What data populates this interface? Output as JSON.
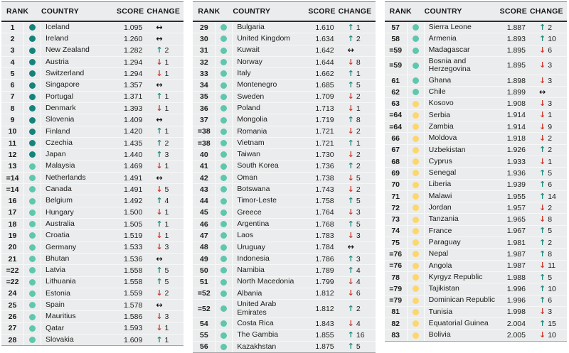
{
  "table": {
    "headers": {
      "rank": "RANK",
      "country": "COUNTRY",
      "score": "SCORE",
      "change": "CHANGE"
    },
    "change_glyphs": {
      "up": "↑",
      "down": "↓",
      "same": "↔"
    },
    "colors": {
      "tier_very_high": "#15837b",
      "tier_high": "#5ec7ad",
      "tier_medium": "#fbd76c",
      "change_up": "#1e8a7c",
      "change_down": "#cf382d",
      "change_same": "#111111",
      "block_background": "#ebeced"
    },
    "columns": [
      {
        "rows": [
          {
            "rank": "1",
            "tier": "vh",
            "country": "Iceland",
            "score": "1.095",
            "dir": "same",
            "change": ""
          },
          {
            "rank": "2",
            "tier": "vh",
            "country": "Ireland",
            "score": "1.260",
            "dir": "same",
            "change": ""
          },
          {
            "rank": "3",
            "tier": "vh",
            "country": "New Zealand",
            "score": "1.282",
            "dir": "up",
            "change": "2"
          },
          {
            "rank": "4",
            "tier": "vh",
            "country": "Austria",
            "score": "1.294",
            "dir": "down",
            "change": "1"
          },
          {
            "rank": "5",
            "tier": "vh",
            "country": "Switzerland",
            "score": "1.294",
            "dir": "down",
            "change": "1"
          },
          {
            "rank": "6",
            "tier": "vh",
            "country": "Singapore",
            "score": "1.357",
            "dir": "same",
            "change": ""
          },
          {
            "rank": "7",
            "tier": "vh",
            "country": "Portugal",
            "score": "1.371",
            "dir": "up",
            "change": "1"
          },
          {
            "rank": "8",
            "tier": "vh",
            "country": "Denmark",
            "score": "1.393",
            "dir": "down",
            "change": "1"
          },
          {
            "rank": "9",
            "tier": "vh",
            "country": "Slovenia",
            "score": "1.409",
            "dir": "same",
            "change": ""
          },
          {
            "rank": "10",
            "tier": "vh",
            "country": "Finland",
            "score": "1.420",
            "dir": "up",
            "change": "1"
          },
          {
            "rank": "11",
            "tier": "vh",
            "country": "Czechia",
            "score": "1.435",
            "dir": "up",
            "change": "2"
          },
          {
            "rank": "12",
            "tier": "vh",
            "country": "Japan",
            "score": "1.440",
            "dir": "up",
            "change": "3"
          },
          {
            "rank": "13",
            "tier": "h",
            "country": "Malaysia",
            "score": "1.469",
            "dir": "down",
            "change": "1"
          },
          {
            "rank": "=14",
            "tier": "h",
            "country": "Netherlands",
            "score": "1.491",
            "dir": "same",
            "change": ""
          },
          {
            "rank": "=14",
            "tier": "h",
            "country": "Canada",
            "score": "1.491",
            "dir": "down",
            "change": "5"
          },
          {
            "rank": "16",
            "tier": "h",
            "country": "Belgium",
            "score": "1.492",
            "dir": "up",
            "change": "4"
          },
          {
            "rank": "17",
            "tier": "h",
            "country": "Hungary",
            "score": "1.500",
            "dir": "down",
            "change": "1"
          },
          {
            "rank": "18",
            "tier": "h",
            "country": "Australia",
            "score": "1.505",
            "dir": "up",
            "change": "1"
          },
          {
            "rank": "19",
            "tier": "h",
            "country": "Croatia",
            "score": "1.519",
            "dir": "down",
            "change": "1"
          },
          {
            "rank": "20",
            "tier": "h",
            "country": "Germany",
            "score": "1.533",
            "dir": "down",
            "change": "3"
          },
          {
            "rank": "21",
            "tier": "h",
            "country": "Bhutan",
            "score": "1.536",
            "dir": "same",
            "change": ""
          },
          {
            "rank": "=22",
            "tier": "h",
            "country": "Latvia",
            "score": "1.558",
            "dir": "up",
            "change": "5"
          },
          {
            "rank": "=22",
            "tier": "h",
            "country": "Lithuania",
            "score": "1.558",
            "dir": "up",
            "change": "5"
          },
          {
            "rank": "24",
            "tier": "h",
            "country": "Estonia",
            "score": "1.559",
            "dir": "down",
            "change": "2"
          },
          {
            "rank": "25",
            "tier": "h",
            "country": "Spain",
            "score": "1.578",
            "dir": "same",
            "change": ""
          },
          {
            "rank": "26",
            "tier": "h",
            "country": "Mauritius",
            "score": "1.586",
            "dir": "down",
            "change": "3"
          },
          {
            "rank": "27",
            "tier": "h",
            "country": "Qatar",
            "score": "1.593",
            "dir": "down",
            "change": "1"
          },
          {
            "rank": "28",
            "tier": "h",
            "country": "Slovakia",
            "score": "1.609",
            "dir": "up",
            "change": "1"
          }
        ]
      },
      {
        "rows": [
          {
            "rank": "29",
            "tier": "h",
            "country": "Bulgaria",
            "score": "1.610",
            "dir": "up",
            "change": "1"
          },
          {
            "rank": "30",
            "tier": "h",
            "country": "United Kingdom",
            "score": "1.634",
            "dir": "up",
            "change": "2"
          },
          {
            "rank": "31",
            "tier": "h",
            "country": "Kuwait",
            "score": "1.642",
            "dir": "same",
            "change": ""
          },
          {
            "rank": "32",
            "tier": "h",
            "country": "Norway",
            "score": "1.644",
            "dir": "down",
            "change": "8"
          },
          {
            "rank": "33",
            "tier": "h",
            "country": "Italy",
            "score": "1.662",
            "dir": "up",
            "change": "1"
          },
          {
            "rank": "34",
            "tier": "h",
            "country": "Montenegro",
            "score": "1.685",
            "dir": "up",
            "change": "5"
          },
          {
            "rank": "35",
            "tier": "h",
            "country": "Sweden",
            "score": "1.709",
            "dir": "down",
            "change": "2"
          },
          {
            "rank": "36",
            "tier": "h",
            "country": "Poland",
            "score": "1.713",
            "dir": "down",
            "change": "1"
          },
          {
            "rank": "37",
            "tier": "h",
            "country": "Mongolia",
            "score": "1.719",
            "dir": "up",
            "change": "8"
          },
          {
            "rank": "=38",
            "tier": "h",
            "country": "Romania",
            "score": "1.721",
            "dir": "down",
            "change": "2"
          },
          {
            "rank": "=38",
            "tier": "h",
            "country": "Vietnam",
            "score": "1.721",
            "dir": "up",
            "change": "1"
          },
          {
            "rank": "40",
            "tier": "h",
            "country": "Taiwan",
            "score": "1.730",
            "dir": "down",
            "change": "2"
          },
          {
            "rank": "41",
            "tier": "h",
            "country": "South Korea",
            "score": "1.736",
            "dir": "up",
            "change": "2"
          },
          {
            "rank": "42",
            "tier": "h",
            "country": "Oman",
            "score": "1.738",
            "dir": "down",
            "change": "5"
          },
          {
            "rank": "43",
            "tier": "h",
            "country": "Botswana",
            "score": "1.743",
            "dir": "down",
            "change": "2"
          },
          {
            "rank": "44",
            "tier": "h",
            "country": "Timor-Leste",
            "score": "1.758",
            "dir": "up",
            "change": "5"
          },
          {
            "rank": "45",
            "tier": "h",
            "country": "Greece",
            "score": "1.764",
            "dir": "down",
            "change": "3"
          },
          {
            "rank": "46",
            "tier": "h",
            "country": "Argentina",
            "score": "1.768",
            "dir": "up",
            "change": "5"
          },
          {
            "rank": "47",
            "tier": "h",
            "country": "Laos",
            "score": "1.783",
            "dir": "down",
            "change": "3"
          },
          {
            "rank": "48",
            "tier": "h",
            "country": "Uruguay",
            "score": "1.784",
            "dir": "same",
            "change": ""
          },
          {
            "rank": "49",
            "tier": "h",
            "country": "Indonesia",
            "score": "1.786",
            "dir": "up",
            "change": "3"
          },
          {
            "rank": "50",
            "tier": "h",
            "country": "Namibia",
            "score": "1.789",
            "dir": "up",
            "change": "4"
          },
          {
            "rank": "51",
            "tier": "h",
            "country": "North Macedonia",
            "score": "1.799",
            "dir": "down",
            "change": "4"
          },
          {
            "rank": "=52",
            "tier": "h",
            "country": "Albania",
            "score": "1.812",
            "dir": "down",
            "change": "6"
          },
          {
            "rank": "=52",
            "tier": "h",
            "country": "United Arab Emirates",
            "score": "1.812",
            "dir": "up",
            "change": "2"
          },
          {
            "rank": "54",
            "tier": "h",
            "country": "Costa Rica",
            "score": "1.843",
            "dir": "down",
            "change": "4"
          },
          {
            "rank": "55",
            "tier": "h",
            "country": "The Gambia",
            "score": "1.855",
            "dir": "up",
            "change": "16"
          },
          {
            "rank": "56",
            "tier": "h",
            "country": "Kazakhstan",
            "score": "1.875",
            "dir": "up",
            "change": "5"
          }
        ]
      },
      {
        "rows": [
          {
            "rank": "57",
            "tier": "h",
            "country": "Sierra Leone",
            "score": "1.887",
            "dir": "up",
            "change": "2"
          },
          {
            "rank": "58",
            "tier": "h",
            "country": "Armenia",
            "score": "1.893",
            "dir": "up",
            "change": "10"
          },
          {
            "rank": "=59",
            "tier": "h",
            "country": "Madagascar",
            "score": "1.895",
            "dir": "down",
            "change": "6"
          },
          {
            "rank": "=59",
            "tier": "h",
            "country": "Bosnia and\nHerzegovina",
            "score": "1.895",
            "dir": "down",
            "change": "3"
          },
          {
            "rank": "61",
            "tier": "h",
            "country": "Ghana",
            "score": "1.898",
            "dir": "down",
            "change": "3"
          },
          {
            "rank": "62",
            "tier": "h",
            "country": "Chile",
            "score": "1.899",
            "dir": "same",
            "change": ""
          },
          {
            "rank": "63",
            "tier": "m",
            "country": "Kosovo",
            "score": "1.908",
            "dir": "down",
            "change": "3"
          },
          {
            "rank": "=64",
            "tier": "m",
            "country": "Serbia",
            "score": "1.914",
            "dir": "down",
            "change": "1"
          },
          {
            "rank": "=64",
            "tier": "m",
            "country": "Zambia",
            "score": "1.914",
            "dir": "down",
            "change": "9"
          },
          {
            "rank": "66",
            "tier": "m",
            "country": "Moldova",
            "score": "1.918",
            "dir": "down",
            "change": "2"
          },
          {
            "rank": "67",
            "tier": "m",
            "country": "Uzbekistan",
            "score": "1.926",
            "dir": "up",
            "change": "2"
          },
          {
            "rank": "68",
            "tier": "m",
            "country": "Cyprus",
            "score": "1.933",
            "dir": "down",
            "change": "1"
          },
          {
            "rank": "69",
            "tier": "m",
            "country": "Senegal",
            "score": "1.936",
            "dir": "up",
            "change": "5"
          },
          {
            "rank": "70",
            "tier": "m",
            "country": "Liberia",
            "score": "1.939",
            "dir": "up",
            "change": "6"
          },
          {
            "rank": "71",
            "tier": "m",
            "country": "Malawi",
            "score": "1.955",
            "dir": "up",
            "change": "14"
          },
          {
            "rank": "72",
            "tier": "m",
            "country": "Jordan",
            "score": "1.957",
            "dir": "down",
            "change": "2"
          },
          {
            "rank": "73",
            "tier": "m",
            "country": "Tanzania",
            "score": "1.965",
            "dir": "down",
            "change": "8"
          },
          {
            "rank": "74",
            "tier": "m",
            "country": "France",
            "score": "1.967",
            "dir": "up",
            "change": "5"
          },
          {
            "rank": "75",
            "tier": "m",
            "country": "Paraguay",
            "score": "1.981",
            "dir": "up",
            "change": "2"
          },
          {
            "rank": "=76",
            "tier": "m",
            "country": "Nepal",
            "score": "1.987",
            "dir": "up",
            "change": "8"
          },
          {
            "rank": "=76",
            "tier": "m",
            "country": "Angola",
            "score": "1.987",
            "dir": "down",
            "change": "11"
          },
          {
            "rank": "78",
            "tier": "m",
            "country": "Kyrgyz Republic",
            "score": "1.988",
            "dir": "up",
            "change": "5"
          },
          {
            "rank": "=79",
            "tier": "m",
            "country": "Tajikistan",
            "score": "1.996",
            "dir": "up",
            "change": "10"
          },
          {
            "rank": "=79",
            "tier": "m",
            "country": "Dominican Republic",
            "score": "1.996",
            "dir": "up",
            "change": "6"
          },
          {
            "rank": "81",
            "tier": "m",
            "country": "Tunisia",
            "score": "1.998",
            "dir": "down",
            "change": "3"
          },
          {
            "rank": "82",
            "tier": "m",
            "country": "Equatorial Guinea",
            "score": "2.004",
            "dir": "up",
            "change": "15"
          },
          {
            "rank": "83",
            "tier": "m",
            "country": "Bolivia",
            "score": "2.005",
            "dir": "down",
            "change": "10"
          }
        ]
      }
    ]
  }
}
